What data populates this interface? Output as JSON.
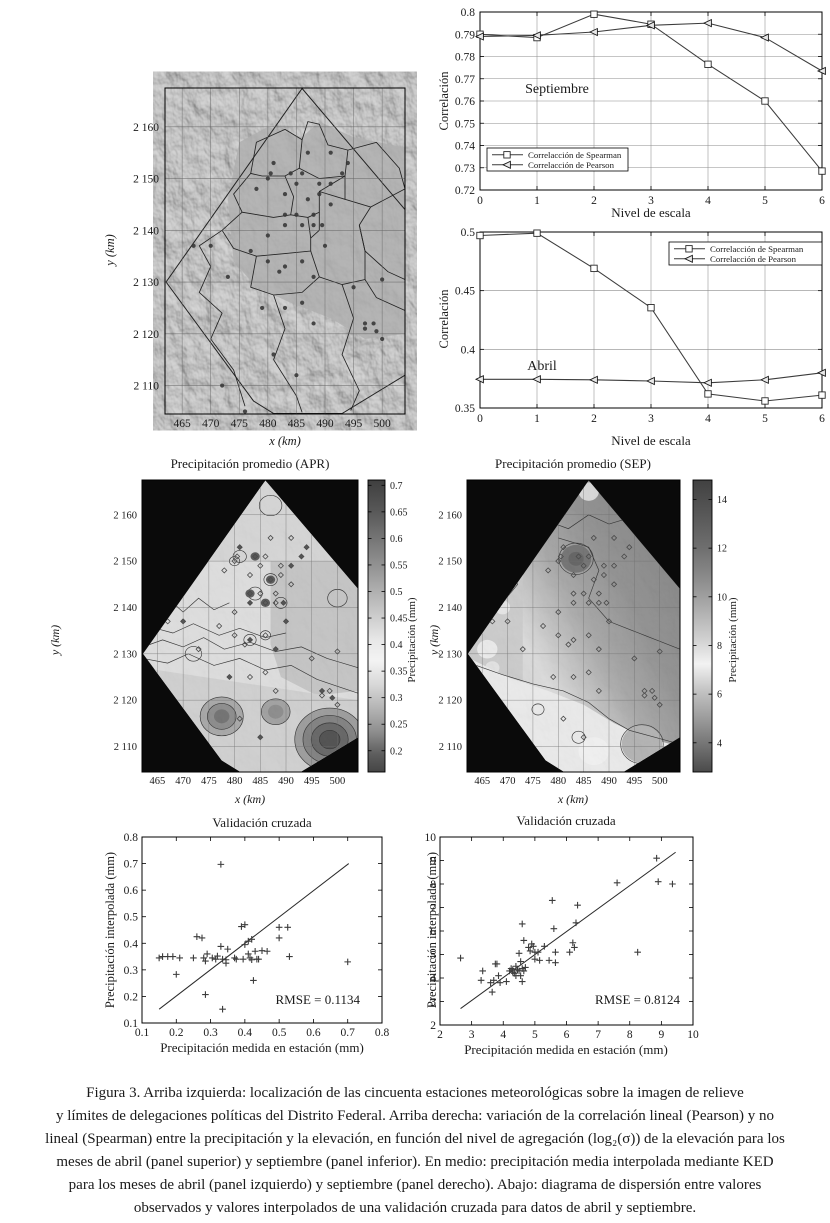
{
  "colors": {
    "ink": "#1a1a1a",
    "grid": "#8c8c8c",
    "map_background": "#0a0a0a",
    "series": "#3c3c3c"
  },
  "panels": {
    "corr_sep": {
      "label": "Septiembre",
      "xlabel": "Nivel de escala",
      "ylabel": "Correlación"
    },
    "corr_abr": {
      "label": "Abril",
      "xlabel": "Nivel de escala",
      "ylabel": "Correlación"
    },
    "relief": {
      "xlabel": "x (km)",
      "ylabel": "y (km)"
    },
    "apr": {
      "title": "Precipitación promedio (APR)",
      "xlabel": "x (km)",
      "ylabel": "y (km)",
      "colorbar_label": "Precipitación (mm)"
    },
    "sep": {
      "title": "Precipitación promedio (SEP)",
      "xlabel": "x (km)",
      "ylabel": "y (km)",
      "colorbar_label": "Precipitación (mm)"
    },
    "val_apr": {
      "title": "Validación cruzada",
      "xlabel": "Precipitación medida en estación (mm)",
      "ylabel": "Precipitación interpolada (mm)",
      "rmse": "RMSE = 0.1134"
    },
    "val_sep": {
      "title": "Validación cruzada",
      "xlabel": "Precipitación medida en estación (mm)",
      "ylabel": "Precipitación interpolada (mm)",
      "rmse": "RMSE = 0.8124"
    }
  },
  "maps": {
    "relief": {
      "xlabel": "x (km)",
      "ylabel": "y (km)",
      "xticks": [
        465,
        470,
        475,
        480,
        485,
        490,
        495,
        500
      ],
      "ytick_values": [
        2160,
        2150,
        2140,
        2130,
        2120,
        2110
      ],
      "ytick_labels": [
        "2 160",
        "2 150",
        "2 140",
        "2 130",
        "2 120",
        "2 110"
      ],
      "xrange": [
        462,
        504
      ],
      "yrange": [
        2104.5,
        2167.5
      ],
      "stations": [
        [
          481,
          2153
        ],
        [
          487,
          2155
        ],
        [
          491,
          2155
        ],
        [
          494,
          2153
        ],
        [
          480.5,
          2151
        ],
        [
          480,
          2150
        ],
        [
          484,
          2151
        ],
        [
          486,
          2151
        ],
        [
          489,
          2149
        ],
        [
          491,
          2149
        ],
        [
          478,
          2148
        ],
        [
          483,
          2147
        ],
        [
          487,
          2146
        ],
        [
          489,
          2147
        ],
        [
          491,
          2145
        ],
        [
          483,
          2143
        ],
        [
          485,
          2143
        ],
        [
          488,
          2143
        ],
        [
          483,
          2141
        ],
        [
          486,
          2141
        ],
        [
          488,
          2141
        ],
        [
          489.5,
          2141
        ],
        [
          480,
          2139
        ],
        [
          477,
          2136
        ],
        [
          470,
          2137
        ],
        [
          467,
          2137
        ],
        [
          480,
          2134
        ],
        [
          483,
          2133
        ],
        [
          486,
          2134
        ],
        [
          482,
          2132
        ],
        [
          488,
          2131
        ],
        [
          495,
          2129
        ],
        [
          500,
          2130.5
        ],
        [
          479,
          2125
        ],
        [
          483,
          2125
        ],
        [
          488,
          2122
        ],
        [
          497,
          2122
        ],
        [
          498.5,
          2122
        ],
        [
          497,
          2121
        ],
        [
          499,
          2120.5
        ],
        [
          500,
          2119
        ],
        [
          481,
          2116
        ],
        [
          485,
          2112
        ],
        [
          472,
          2110
        ],
        [
          476,
          2105
        ],
        [
          493,
          2151
        ],
        [
          485,
          2149
        ],
        [
          473,
          2131
        ],
        [
          490,
          2137
        ],
        [
          486,
          2126
        ]
      ]
    },
    "apr": {
      "title": "Precipitación promedio (APR)",
      "xticks": [
        465,
        470,
        475,
        480,
        485,
        490,
        495,
        500
      ],
      "ytick_values": [
        2160,
        2150,
        2140,
        2130,
        2120,
        2110
      ],
      "ytick_labels": [
        "2 160",
        "2 150",
        "2 140",
        "2 130",
        "2 120",
        "2 110"
      ],
      "xrange": [
        462,
        504
      ],
      "yrange": [
        2104.5,
        2167.5
      ],
      "colorbar_label": "Precipitación (mm)",
      "colorbar_ticks": [
        0.7,
        0.65,
        0.6,
        0.55,
        0.5,
        0.45,
        0.4,
        0.35,
        0.3,
        0.25,
        0.2
      ],
      "colorbar_range": [
        0.71,
        0.16
      ]
    },
    "sep": {
      "title": "Precipitación promedio (SEP)",
      "xticks": [
        465,
        470,
        475,
        480,
        485,
        490,
        495,
        500
      ],
      "ytick_values": [
        2160,
        2150,
        2140,
        2130,
        2120,
        2110
      ],
      "ytick_labels": [
        "2 160",
        "2 150",
        "2 140",
        "2 130",
        "2 120",
        "2 110"
      ],
      "xrange": [
        462,
        504
      ],
      "yrange": [
        2104.5,
        2167.5
      ],
      "colorbar_label": "Precipitación (mm)",
      "colorbar_ticks": [
        14,
        12,
        10,
        8,
        6,
        4
      ],
      "colorbar_range": [
        14.8,
        2.8
      ]
    }
  },
  "chart_data": [
    {
      "id": "correlacion_septiembre",
      "type": "line",
      "panel_label": "Septiembre",
      "xlabel": "Nivel de escala",
      "ylabel": "Correlación",
      "x": [
        0,
        1,
        2,
        3,
        4,
        5,
        6
      ],
      "xlim": [
        0,
        6
      ],
      "ylim": [
        0.72,
        0.8
      ],
      "yticks": [
        0.72,
        0.73,
        0.74,
        0.75,
        0.76,
        0.77,
        0.78,
        0.79,
        0.8
      ],
      "grid": true,
      "legend_position": "bottom-left",
      "series": [
        {
          "name": "Correlacción de Spearman",
          "marker": "open-square",
          "values": [
            0.79,
            0.7885,
            0.799,
            0.7945,
            0.7765,
            0.76,
            0.7285
          ]
        },
        {
          "name": "Correlacción de Pearson",
          "marker": "left-triangle",
          "values": [
            0.789,
            0.7895,
            0.791,
            0.794,
            0.795,
            0.7885,
            0.7735
          ]
        }
      ]
    },
    {
      "id": "correlacion_abril",
      "type": "line",
      "panel_label": "Abril",
      "xlabel": "Nivel de escala",
      "ylabel": "Correlación",
      "x": [
        0,
        1,
        2,
        3,
        4,
        5,
        6
      ],
      "xlim": [
        0,
        6
      ],
      "ylim": [
        0.35,
        0.5
      ],
      "yticks": [
        0.35,
        0.4,
        0.45,
        0.5
      ],
      "grid": true,
      "legend_position": "top-right",
      "series": [
        {
          "name": "Correlacción de Spearman",
          "marker": "open-square",
          "values": [
            0.497,
            0.499,
            0.469,
            0.4355,
            0.362,
            0.356,
            0.361
          ]
        },
        {
          "name": "Correlacción de Pearson",
          "marker": "left-triangle",
          "values": [
            0.3745,
            0.3745,
            0.374,
            0.373,
            0.3715,
            0.374,
            0.38
          ]
        }
      ]
    },
    {
      "id": "validacion_cruzada_abril",
      "type": "scatter",
      "title": "Validación cruzada",
      "xlabel": "Precipitación medida en estación (mm)",
      "ylabel": "Precipitación interpolada (mm)",
      "xlim": [
        0.1,
        0.8
      ],
      "ylim": [
        0.1,
        0.8
      ],
      "xticks": [
        0.1,
        0.2,
        0.3,
        0.4,
        0.5,
        0.6,
        0.7,
        0.8
      ],
      "yticks": [
        0.1,
        0.2,
        0.3,
        0.4,
        0.5,
        0.6,
        0.7,
        0.8
      ],
      "rmse_label": "RMSE = 0.1134",
      "fit_line": [
        [
          0.15,
          0.152
        ],
        [
          0.703,
          0.7
        ]
      ],
      "points": [
        [
          0.15,
          0.345
        ],
        [
          0.16,
          0.35
        ],
        [
          0.175,
          0.35
        ],
        [
          0.19,
          0.35
        ],
        [
          0.2,
          0.283
        ],
        [
          0.21,
          0.345
        ],
        [
          0.25,
          0.345
        ],
        [
          0.26,
          0.425
        ],
        [
          0.275,
          0.42
        ],
        [
          0.28,
          0.345
        ],
        [
          0.285,
          0.333
        ],
        [
          0.29,
          0.36
        ],
        [
          0.285,
          0.207
        ],
        [
          0.305,
          0.345
        ],
        [
          0.315,
          0.34
        ],
        [
          0.32,
          0.352
        ],
        [
          0.33,
          0.697
        ],
        [
          0.33,
          0.388
        ],
        [
          0.335,
          0.34
        ],
        [
          0.335,
          0.152
        ],
        [
          0.345,
          0.338
        ],
        [
          0.35,
          0.378
        ],
        [
          0.345,
          0.325
        ],
        [
          0.37,
          0.345
        ],
        [
          0.375,
          0.34
        ],
        [
          0.39,
          0.463
        ],
        [
          0.4,
          0.47
        ],
        [
          0.4,
          0.395
        ],
        [
          0.395,
          0.34
        ],
        [
          0.41,
          0.408
        ],
        [
          0.42,
          0.415
        ],
        [
          0.41,
          0.36
        ],
        [
          0.415,
          0.345
        ],
        [
          0.42,
          0.338
        ],
        [
          0.425,
          0.26
        ],
        [
          0.43,
          0.37
        ],
        [
          0.435,
          0.34
        ],
        [
          0.44,
          0.34
        ],
        [
          0.45,
          0.372
        ],
        [
          0.465,
          0.37
        ],
        [
          0.5,
          0.42
        ],
        [
          0.5,
          0.46
        ],
        [
          0.525,
          0.46
        ],
        [
          0.53,
          0.35
        ],
        [
          0.7,
          0.33
        ]
      ]
    },
    {
      "id": "validacion_cruzada_septiembre",
      "type": "scatter",
      "title": "Validación cruzada",
      "xlabel": "Precipitación medida en estación (mm)",
      "ylabel": "Precipitación interpolada (mm)",
      "xlim": [
        2,
        10
      ],
      "ylim": [
        2,
        10
      ],
      "xticks": [
        2,
        3,
        4,
        5,
        6,
        7,
        8,
        9,
        10
      ],
      "yticks": [
        2,
        3,
        4,
        5,
        6,
        7,
        8,
        9,
        10
      ],
      "rmse_label": "RMSE = 0.8124",
      "fit_line": [
        [
          2.65,
          2.7
        ],
        [
          9.45,
          9.35
        ]
      ],
      "points": [
        [
          2.65,
          4.85
        ],
        [
          3.3,
          3.9
        ],
        [
          3.35,
          4.3
        ],
        [
          3.6,
          3.8
        ],
        [
          3.65,
          3.4
        ],
        [
          3.7,
          3.9
        ],
        [
          3.75,
          4.6
        ],
        [
          3.8,
          4.6
        ],
        [
          3.85,
          4.1
        ],
        [
          3.9,
          3.8
        ],
        [
          4.1,
          3.85
        ],
        [
          4.2,
          4.3
        ],
        [
          4.25,
          4.4
        ],
        [
          4.3,
          4.35
        ],
        [
          4.3,
          4.25
        ],
        [
          4.35,
          4.2
        ],
        [
          4.4,
          4.5
        ],
        [
          4.4,
          4.1
        ],
        [
          4.45,
          4.35
        ],
        [
          4.5,
          5.05
        ],
        [
          4.5,
          4.3
        ],
        [
          4.55,
          4.7
        ],
        [
          4.55,
          4.1
        ],
        [
          4.6,
          6.3
        ],
        [
          4.6,
          4.4
        ],
        [
          4.6,
          3.85
        ],
        [
          4.65,
          5.6
        ],
        [
          4.65,
          4.3
        ],
        [
          4.7,
          4.45
        ],
        [
          4.8,
          5.3
        ],
        [
          4.85,
          5.15
        ],
        [
          4.9,
          5.45
        ],
        [
          4.95,
          5.35
        ],
        [
          5.0,
          5.1
        ],
        [
          5.0,
          4.8
        ],
        [
          5.1,
          5.1
        ],
        [
          5.15,
          4.75
        ],
        [
          5.3,
          5.35
        ],
        [
          5.45,
          4.75
        ],
        [
          5.55,
          7.3
        ],
        [
          5.6,
          6.1
        ],
        [
          5.65,
          5.1
        ],
        [
          5.65,
          4.65
        ],
        [
          6.1,
          5.1
        ],
        [
          6.2,
          5.5
        ],
        [
          6.25,
          5.3
        ],
        [
          6.3,
          6.35
        ],
        [
          6.35,
          7.1
        ],
        [
          7.6,
          8.05
        ],
        [
          8.25,
          5.1
        ],
        [
          8.85,
          9.1
        ],
        [
          8.9,
          8.1
        ],
        [
          9.35,
          8.0
        ]
      ]
    }
  ],
  "caption": {
    "lines": [
      "Figura 3. Arriba izquierda: localización de las cincuenta estaciones meteorológicas sobre la imagen de relieve",
      "y límites de delegaciones políticas del Distrito Federal. Arriba derecha: variación de la correlación lineal (Pearson) y no",
      "lineal (Spearman) entre la precipitación y la elevación, en función del nivel de agregación (log₂(σ)) de la elevación para los",
      "meses de abril (panel superior) y septiembre (panel inferior). En medio: precipitación media interpolada mediante KED",
      "para los meses de abril (panel izquierdo) y septiembre (panel derecho).  Abajo: diagrama de dispersión entre valores",
      "observados y valores interpolados de una validación cruzada para datos de abril y septiembre."
    ]
  }
}
